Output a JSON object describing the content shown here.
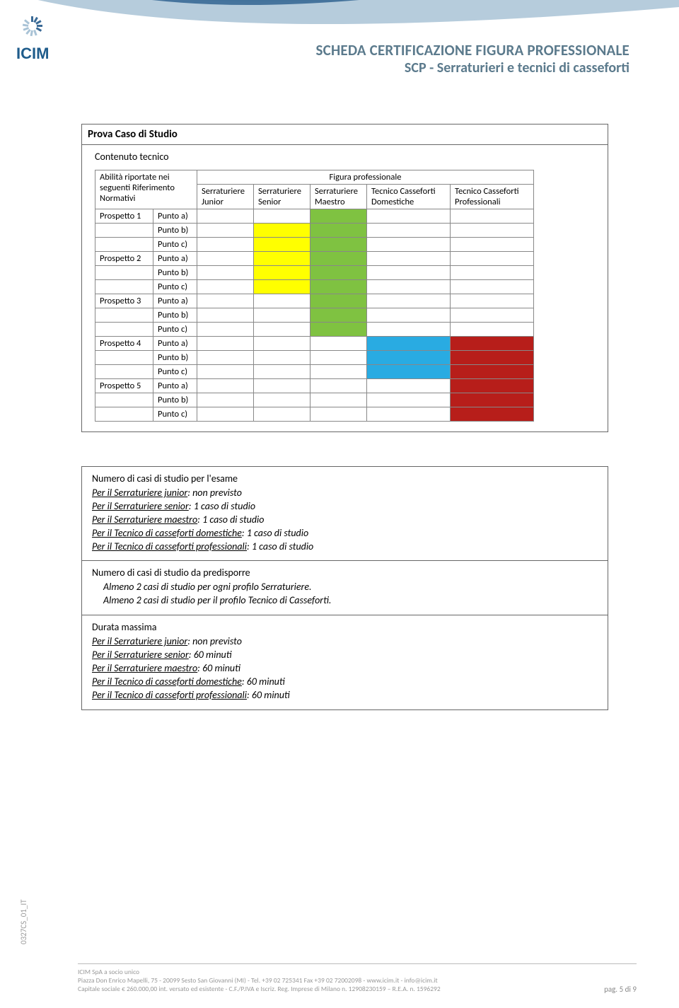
{
  "colors": {
    "header_text": "#5b7a8c",
    "header_blue_dark": "#3a6a96",
    "header_blue_light": "#a9c3d6",
    "border_gray": "#888888",
    "text_gray": "#333333",
    "footer_gray": "#999999",
    "yellow": "#ffff00",
    "green": "#7fc241",
    "blue": "#29abe2",
    "red": "#b71e1a",
    "white": "#ffffff"
  },
  "header": {
    "logo_text": "ICIM",
    "title1": "SCHEDA CERTIFICAZIONE FIGURA PROFESSIONALE",
    "title2": "SCP - Serraturieri e tecnici di casseforti"
  },
  "box": {
    "title": "Prova Caso di Studio",
    "subtitle": "Contenuto tecnico"
  },
  "matrix": {
    "row_header_line1": "Abilità riportate nei",
    "row_header_line2": "seguenti Riferimento",
    "row_header_line3": "Normativi",
    "fig_header": "Figura professionale",
    "columns": [
      {
        "line1": "Serraturiere",
        "line2": "Junior"
      },
      {
        "line1": "Serraturiere",
        "line2": "Senior"
      },
      {
        "line1": "Serraturiere",
        "line2": "Maestro"
      },
      {
        "line1": "Tecnico Casseforti",
        "line2": "Domestiche"
      },
      {
        "line1": "Tecnico Casseforti",
        "line2": "Professionali"
      }
    ],
    "row_groups": [
      "Prospetto 1",
      "Prospetto 2",
      "Prospetto 3",
      "Prospetto 4",
      "Prospetto 5"
    ],
    "row_items": [
      "Punto a)",
      "Punto b)",
      "Punto c)"
    ],
    "cells": [
      [
        "white",
        "white",
        "green",
        "white",
        "white"
      ],
      [
        "white",
        "yellow",
        "green",
        "white",
        "white"
      ],
      [
        "white",
        "yellow",
        "green",
        "white",
        "white"
      ],
      [
        "white",
        "yellow",
        "green",
        "white",
        "white"
      ],
      [
        "white",
        "yellow",
        "green",
        "white",
        "white"
      ],
      [
        "white",
        "yellow",
        "green",
        "white",
        "white"
      ],
      [
        "white",
        "white",
        "green",
        "white",
        "white"
      ],
      [
        "white",
        "white",
        "green",
        "white",
        "white"
      ],
      [
        "white",
        "white",
        "green",
        "white",
        "white"
      ],
      [
        "white",
        "white",
        "white",
        "blue",
        "red"
      ],
      [
        "white",
        "white",
        "white",
        "blue",
        "red"
      ],
      [
        "white",
        "white",
        "white",
        "blue",
        "red"
      ],
      [
        "white",
        "white",
        "white",
        "white",
        "red"
      ],
      [
        "white",
        "white",
        "white",
        "white",
        "red"
      ],
      [
        "white",
        "white",
        "white",
        "white",
        "red"
      ]
    ]
  },
  "section1": {
    "title": "Numero di casi di studio per l'esame",
    "lines": [
      {
        "ul": "Per il Serraturiere junior",
        "rest": ": non previsto"
      },
      {
        "ul": "Per il Serraturiere senior",
        "rest": ": 1 caso di studio"
      },
      {
        "ul": "Per il Serraturiere maestro",
        "rest": ": 1 caso di studio"
      },
      {
        "ul": "Per il Tecnico di casseforti domestiche",
        "rest": ": 1 caso di studio"
      },
      {
        "ul": "Per il Tecnico di casseforti professionali",
        "rest": ": 1 caso di studio"
      }
    ]
  },
  "section2": {
    "title": "Numero di casi di studio da predisporre",
    "lines": [
      "Almeno 2 casi di studio per ogni profilo Serraturiere.",
      "Almeno 2 casi di studio per il profilo Tecnico di Casseforti."
    ]
  },
  "section3": {
    "title": "Durata massima",
    "lines": [
      {
        "ul": "Per il Serraturiere junior",
        "rest": ": non previsto"
      },
      {
        "ul": "Per il Serraturiere senior",
        "rest": ": 60 minuti"
      },
      {
        "ul": "Per il Serraturiere maestro",
        "rest": ": 60 minuti"
      },
      {
        "ul": "Per il Tecnico di casseforti domestiche",
        "rest": ": 60 minuti"
      },
      {
        "ul": "Per il Tecnico di casseforti professionali",
        "rest": ": 60 minuti"
      }
    ]
  },
  "footer": {
    "code": "0327CS_01_IT",
    "company": "ICIM SpA a socio unico",
    "addr": "Piazza Don Enrico Mapelli, 75 - 20099 Sesto San Giovanni (MI) - Tel. +39 02 725341 Fax +39 02 72002098 - www.icim.it - info@icim.it",
    "cap": "Capitale sociale € 260.000,00 int. versato ed esistente - C.F./P.IVA e Iscriz. Reg. Imprese di Milano n. 12908230159 – R.E.A. n. 1596292",
    "page": "pag. 5 di 9"
  }
}
